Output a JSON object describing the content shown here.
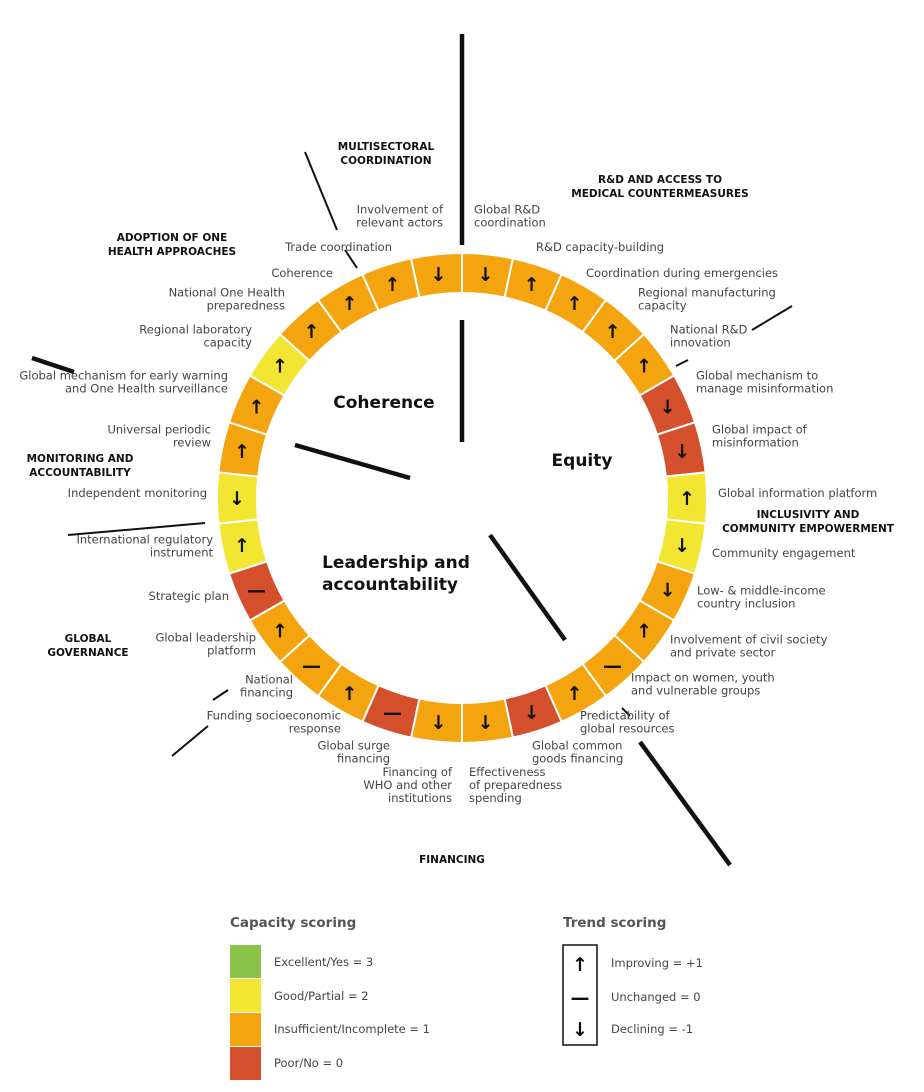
{
  "colors": {
    "score_3": "#8bc34a",
    "score_2": "#f2e633",
    "score_1": "#f4a40e",
    "score_0": "#d44f2c",
    "separator": "#ffffff",
    "line": "#111111"
  },
  "pillars": {
    "coherence": "Coherence",
    "equity": "Equity",
    "leadership_line1": "Leadership and",
    "leadership_line2": "accountability"
  },
  "domains": {
    "multisectoral": [
      "MULTISECTORAL",
      "COORDINATION"
    ],
    "rnd": [
      "R&D AND ACCESS TO",
      "MEDICAL COUNTERMEASURES"
    ],
    "one_health": [
      "ADOPTION OF ONE",
      "HEALTH APPROACHES"
    ],
    "monitoring": [
      "MONITORING AND",
      "ACCOUNTABILITY"
    ],
    "inclusivity": [
      "INCLUSIVITY AND",
      "COMMUNITY EMPOWERMENT"
    ],
    "global_governance": [
      "GLOBAL",
      "GOVERNANCE"
    ],
    "financing": [
      "FINANCING"
    ]
  },
  "segments": [
    {
      "label": [
        "Global R&D",
        "coordination"
      ],
      "score": 1,
      "trend": -1
    },
    {
      "label": [
        "R&D capacity-building"
      ],
      "score": 1,
      "trend": 1
    },
    {
      "label": [
        "Coordination during emergencies"
      ],
      "score": 1,
      "trend": 1
    },
    {
      "label": [
        "Regional manufacturing",
        "capacity"
      ],
      "score": 1,
      "trend": 1
    },
    {
      "label": [
        "National R&D",
        "innovation"
      ],
      "score": 1,
      "trend": 1
    },
    {
      "label": [
        "Global mechanism to",
        "manage misinformation"
      ],
      "score": 0,
      "trend": -1
    },
    {
      "label": [
        "Global impact of",
        "misinformation"
      ],
      "score": 0,
      "trend": -1
    },
    {
      "label": [
        "Global information platform"
      ],
      "score": 2,
      "trend": 1
    },
    {
      "label": [
        "Community engagement"
      ],
      "score": 2,
      "trend": -1
    },
    {
      "label": [
        "Low- & middle-income",
        "country inclusion"
      ],
      "score": 1,
      "trend": -1
    },
    {
      "label": [
        "Involvement of civil society",
        "and private sector"
      ],
      "score": 1,
      "trend": 1
    },
    {
      "label": [
        "Impact on women, youth",
        "and vulnerable groups"
      ],
      "score": 1,
      "trend": 0
    },
    {
      "label": [
        "Predictability of",
        "global resources"
      ],
      "score": 1,
      "trend": 1
    },
    {
      "label": [
        "Global common",
        "goods financing"
      ],
      "score": 0,
      "trend": -1
    },
    {
      "label": [
        "Effectiveness",
        "of preparedness",
        "spending"
      ],
      "score": 1,
      "trend": -1
    },
    {
      "label": [
        "Financing of",
        "WHO and other",
        "institutions"
      ],
      "score": 1,
      "trend": -1
    },
    {
      "label": [
        "Global surge",
        "financing"
      ],
      "score": 0,
      "trend": 0
    },
    {
      "label": [
        "Funding socioeconomic",
        "response"
      ],
      "score": 1,
      "trend": 1
    },
    {
      "label": [
        "National",
        "financing"
      ],
      "score": 1,
      "trend": 0
    },
    {
      "label": [
        "Global leadership",
        "platform"
      ],
      "score": 1,
      "trend": 1
    },
    {
      "label": [
        "Strategic plan"
      ],
      "score": 0,
      "trend": 0
    },
    {
      "label": [
        "International regulatory",
        "instrument"
      ],
      "score": 2,
      "trend": 1
    },
    {
      "label": [
        "Independent monitoring"
      ],
      "score": 2,
      "trend": -1
    },
    {
      "label": [
        "Universal periodic",
        "review"
      ],
      "score": 1,
      "trend": 1
    },
    {
      "label": [
        "Global mechanism for early warning",
        "and One Health surveillance"
      ],
      "score": 1,
      "trend": 1
    },
    {
      "label": [
        "Regional laboratory",
        "capacity"
      ],
      "score": 2,
      "trend": 1
    },
    {
      "label": [
        "National One Health",
        "preparedness"
      ],
      "score": 1,
      "trend": 1
    },
    {
      "label": [
        "Coherence"
      ],
      "score": 1,
      "trend": 1
    },
    {
      "label": [
        "Trade coordination"
      ],
      "score": 1,
      "trend": 1
    },
    {
      "label": [
        "Involvement of",
        "relevant actors"
      ],
      "score": 1,
      "trend": -1
    }
  ],
  "trend_symbols": {
    "up": "↑",
    "flat": "—",
    "down": "↓"
  },
  "legend": {
    "capacity_title": "Capacity scoring",
    "capacity_items": [
      "Excellent/Yes = 3",
      "Good/Partial = 2",
      "Insufficient/Incomplete = 1",
      "Poor/No = 0"
    ],
    "trend_title": "Trend scoring",
    "trend_items": [
      "Improving = +1",
      "Unchanged = 0",
      "Declining = -1"
    ]
  }
}
